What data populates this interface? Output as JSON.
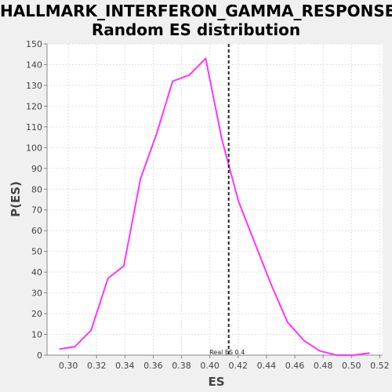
{
  "chart_data": {
    "type": "line",
    "title_line1": "HALLMARK_INTERFERON_GAMMA_RESPONSE:",
    "title_line2": "Random ES distribution",
    "xlabel": "ES",
    "ylabel": "P(ES)",
    "xlim": [
      0.285,
      0.522
    ],
    "ylim": [
      0,
      150
    ],
    "x_ticks": [
      "0.30",
      "0.32",
      "0.34",
      "0.36",
      "0.38",
      "0.40",
      "0.42",
      "0.44",
      "0.46",
      "0.48",
      "0.50",
      "0.52"
    ],
    "x_tick_values": [
      0.3,
      0.32,
      0.34,
      0.36,
      0.38,
      0.4,
      0.42,
      0.44,
      0.46,
      0.48,
      0.5,
      0.52
    ],
    "y_ticks": [
      0,
      10,
      20,
      30,
      40,
      50,
      60,
      70,
      80,
      90,
      100,
      110,
      120,
      130,
      140,
      150
    ],
    "grid": true,
    "series": [
      {
        "color": "#ff33ff",
        "x": [
          0.294,
          0.3045,
          0.3161,
          0.328,
          0.3392,
          0.351,
          0.3625,
          0.3737,
          0.3855,
          0.397,
          0.4085,
          0.4203,
          0.4318,
          0.4433,
          0.4548,
          0.4665,
          0.4778,
          0.4895,
          0.501,
          0.5126
        ],
        "y": [
          3,
          4,
          12,
          37,
          43,
          85,
          107,
          132,
          135,
          143,
          104,
          74,
          54,
          34,
          16,
          7,
          2,
          0,
          0,
          1
        ]
      }
    ],
    "real_es": {
      "value": 0.4133,
      "label": "Real ES 0.4"
    }
  }
}
